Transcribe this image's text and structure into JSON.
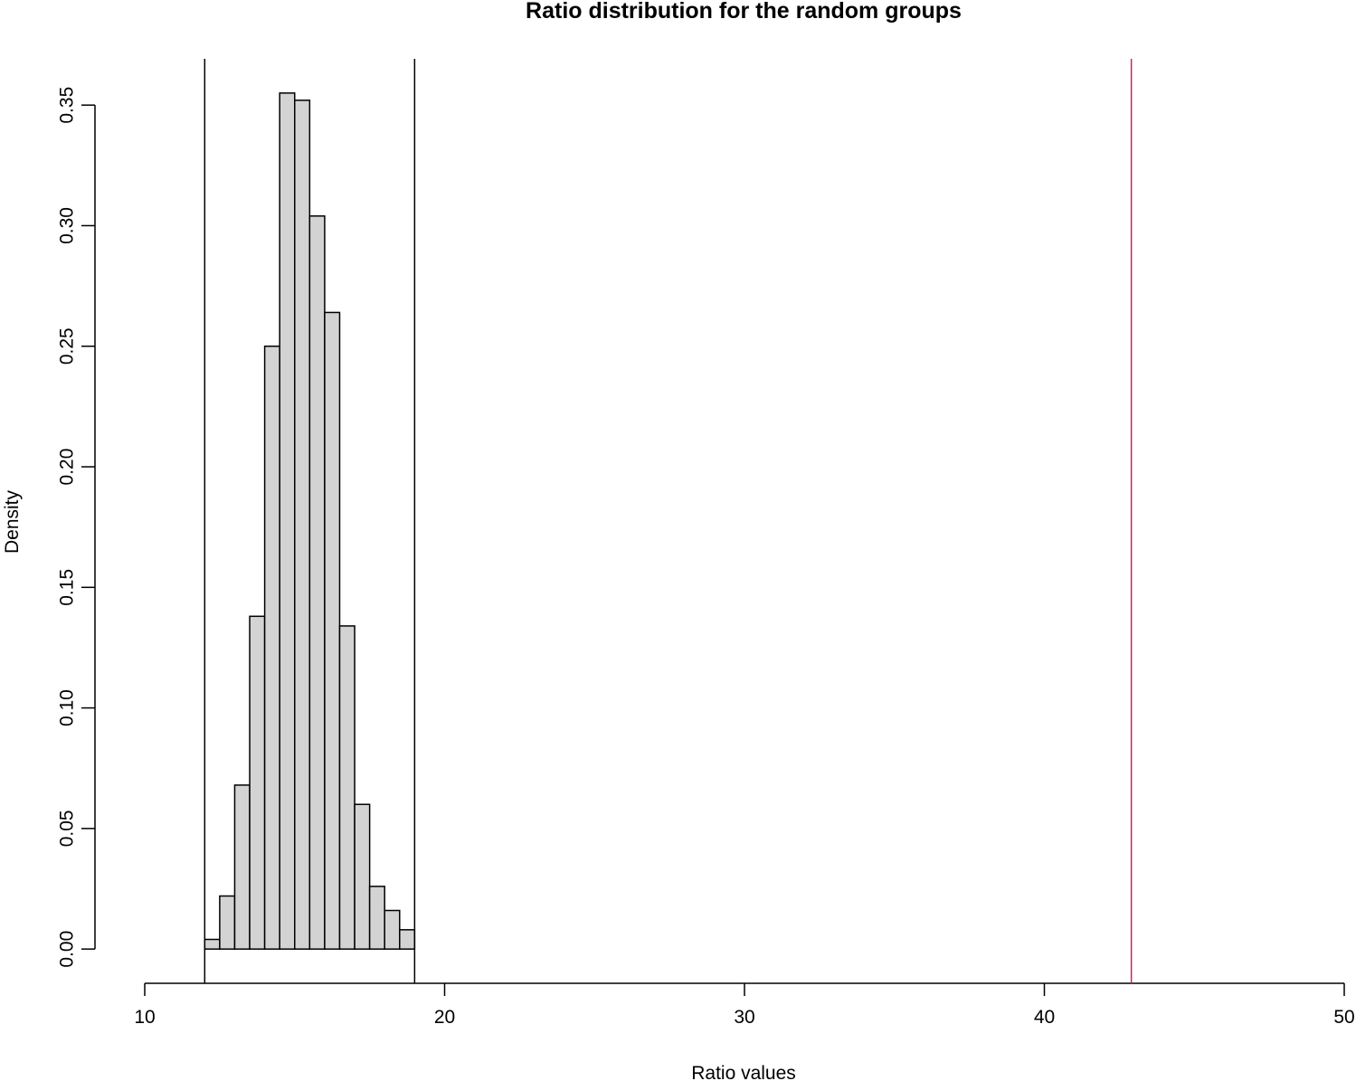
{
  "chart_data": {
    "type": "histogram",
    "title": "Ratio distribution for the random groups",
    "x_label": "Ratio values",
    "y_label": "Density",
    "bins": [
      12.0,
      12.5,
      13.0,
      13.5,
      14.0,
      14.5,
      15.0,
      15.5,
      16.0,
      16.5,
      17.0,
      17.5,
      18.0,
      18.5,
      19.0
    ],
    "values": [
      0.004,
      0.022,
      0.068,
      0.138,
      0.25,
      0.355,
      0.352,
      0.304,
      0.264,
      0.134,
      0.06,
      0.026,
      0.016,
      0.008
    ],
    "color": "#d3d3d3",
    "vlines": [
      {
        "value": 12,
        "color": "#000000"
      },
      {
        "value": 19,
        "color": "#000000"
      },
      {
        "value": 42.9,
        "color": "#d0215a"
      }
    ],
    "xlim": [
      10,
      50
    ],
    "xticks": [
      10,
      20,
      30,
      40,
      50
    ],
    "ylim": [
      -0.0142,
      0.3692
    ],
    "yticks": [
      {
        "value": 0,
        "label": "0.00"
      },
      {
        "value": 0.05,
        "label": "0.05"
      },
      {
        "value": 0.1,
        "label": "0.10"
      },
      {
        "value": 0.15,
        "label": "0.15"
      },
      {
        "value": 0.2,
        "label": "0.20"
      },
      {
        "value": 0.25,
        "label": "0.25"
      },
      {
        "value": 0.3,
        "label": "0.30"
      },
      {
        "value": 0.35,
        "label": "0.35"
      }
    ]
  }
}
